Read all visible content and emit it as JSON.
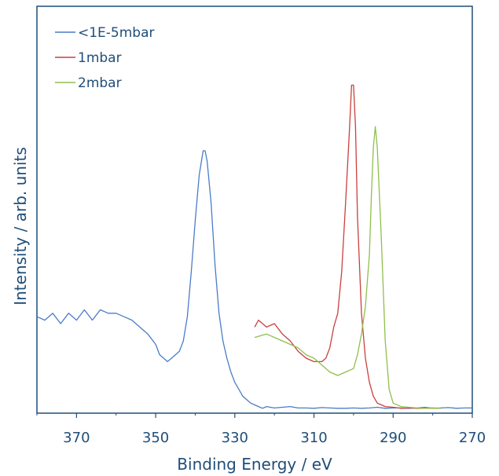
{
  "chart_data": {
    "type": "line",
    "title": "",
    "xlabel": "Binding Energy / eV",
    "ylabel": "Intensity / arb. units",
    "xlim": [
      380,
      270
    ],
    "x_reversed": true,
    "x_ticks": [
      370,
      350,
      330,
      310,
      290,
      270
    ],
    "x_tick_labels": [
      "370",
      "350",
      "330",
      "310",
      "290",
      "270"
    ],
    "y_ticks": [],
    "ylim": [
      0,
      100
    ],
    "grid": false,
    "legend_position": "top-left",
    "series": [
      {
        "name": "<1E-5mbar",
        "color": "#4a7cc7",
        "x": [
          380,
          378,
          376,
          374,
          372,
          370,
          368,
          366,
          364,
          362,
          360,
          358,
          356,
          354,
          352,
          350,
          349,
          348,
          347,
          346,
          345,
          344,
          343,
          342,
          341,
          340,
          339,
          338,
          337.5,
          337,
          336,
          335,
          334,
          333,
          332,
          331,
          330,
          329,
          328,
          327,
          326,
          325,
          324,
          323,
          322,
          320,
          318,
          316,
          314,
          312,
          310,
          308,
          306,
          304,
          302,
          300,
          298,
          296,
          294,
          292,
          290,
          288,
          286,
          284,
          282,
          280,
          278,
          276,
          274,
          272,
          270
        ],
        "y": [
          27,
          26,
          28,
          25,
          28,
          26,
          29,
          26,
          29,
          28,
          28,
          27,
          26,
          24,
          22,
          19,
          16,
          15,
          14,
          15,
          16,
          17,
          20,
          27,
          40,
          55,
          68,
          75,
          75,
          72,
          60,
          42,
          28,
          20,
          15,
          11,
          8,
          6,
          4,
          3,
          2,
          1.5,
          1,
          0.5,
          1,
          0.6,
          0.8,
          1,
          0.6,
          0.6,
          0.5,
          0.7,
          0.6,
          0.5,
          0.5,
          0.6,
          0.5,
          0.6,
          0.8,
          0.5,
          0.6,
          0.6,
          0.5,
          0.6,
          0.8,
          0.5,
          0.6,
          0.7,
          0.5,
          0.6,
          0.6
        ]
      },
      {
        "name": "1mbar",
        "color": "#c9403f",
        "x": [
          325,
          324,
          322,
          320,
          318,
          316,
          314,
          312,
          310,
          308,
          307,
          306,
          305,
          304,
          303,
          302,
          301,
          300.5,
          300,
          299.5,
          299,
          298,
          297,
          296,
          295,
          294,
          293,
          292,
          290,
          288,
          286,
          284,
          282,
          280,
          278
        ],
        "y": [
          24,
          26,
          24,
          25,
          22,
          20,
          17,
          15,
          14,
          14,
          15,
          18,
          24,
          28,
          40,
          60,
          82,
          94,
          94,
          82,
          56,
          28,
          15,
          8,
          4,
          2,
          1.5,
          1,
          0.8,
          0.5,
          0.6,
          0.5,
          0.5,
          0.6,
          0.5
        ]
      },
      {
        "name": "2mbar",
        "color": "#8fbf4c",
        "x": [
          325,
          322,
          320,
          318,
          316,
          314,
          312,
          310,
          308,
          306,
          304,
          302,
          300,
          299,
          298,
          297,
          296,
          295.5,
          295,
          294.5,
          294,
          293,
          292,
          291,
          290,
          288,
          286,
          284,
          282,
          280,
          278
        ],
        "y": [
          21,
          22,
          21,
          20,
          19,
          18,
          16,
          15,
          13,
          11,
          10,
          11,
          12,
          16,
          22,
          30,
          45,
          62,
          76,
          82,
          76,
          50,
          20,
          6,
          2,
          1,
          0.8,
          0.6,
          0.5,
          0.5,
          0.5
        ]
      }
    ]
  }
}
